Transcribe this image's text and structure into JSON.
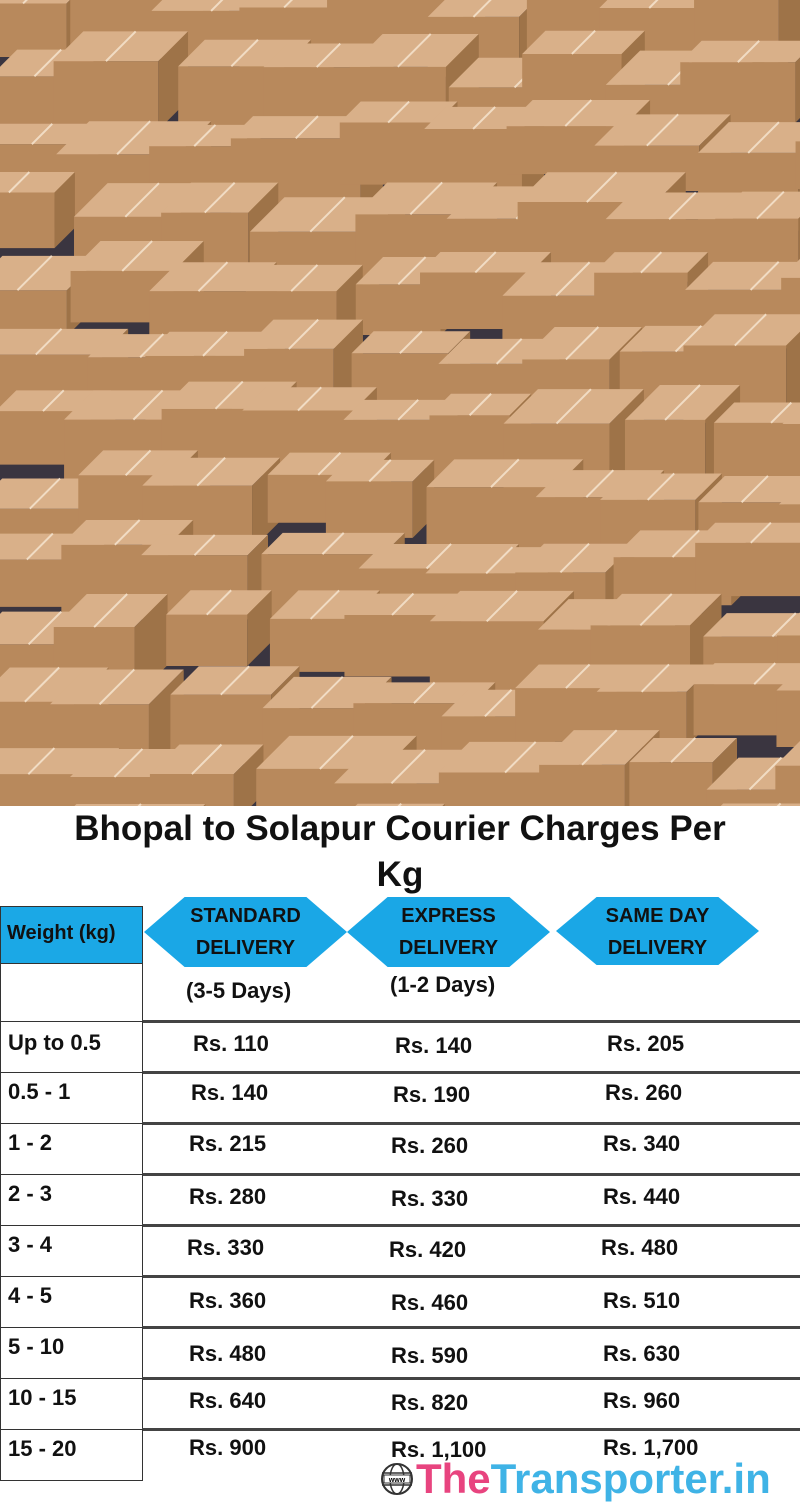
{
  "title": "Bhopal to Solapur Courier Charges Per Kg",
  "title_lines": [
    "Bhopal to Solapur Courier Charges Per",
    "Kg"
  ],
  "table": {
    "weight_header": "Weight (kg)",
    "services": [
      {
        "line1": "STANDARD",
        "line2": "DELIVERY",
        "duration": "(3-5 Days)"
      },
      {
        "line1": "EXPRESS",
        "line2": "DELIVERY",
        "duration": "(1-2 Days)"
      },
      {
        "line1": "SAME DAY",
        "line2": "DELIVERY",
        "duration": ""
      }
    ],
    "rows": [
      {
        "weight": "Up to 0.5",
        "standard": "Rs. 110",
        "express": "Rs. 140",
        "same_day": "Rs. 205"
      },
      {
        "weight": "0.5 - 1",
        "standard": "Rs. 140",
        "express": "Rs. 190",
        "same_day": "Rs. 260"
      },
      {
        "weight": "1 - 2",
        "standard": "Rs. 215",
        "express": "Rs. 260",
        "same_day": "Rs. 340"
      },
      {
        "weight": "2 - 3",
        "standard": "Rs. 280",
        "express": "Rs. 330",
        "same_day": "Rs. 440"
      },
      {
        "weight": "3 - 4",
        "standard": "Rs. 330",
        "express": "Rs. 420",
        "same_day": "Rs. 480"
      },
      {
        "weight": "4 - 5",
        "standard": "Rs. 360",
        "express": "Rs. 460",
        "same_day": "Rs. 510"
      },
      {
        "weight": "5 - 10",
        "standard": "Rs. 480",
        "express": "Rs. 590",
        "same_day": "Rs. 630"
      },
      {
        "weight": "10 - 15",
        "standard": "Rs. 640",
        "express": "Rs. 820",
        "same_day": "Rs. 960"
      },
      {
        "weight": "15 - 20",
        "standard": "Rs. 900",
        "express": "Rs. 1,100",
        "same_day": "Rs. 1,700"
      }
    ]
  },
  "logo": {
    "part1": "The",
    "part2": "Transporter.in",
    "icon_text": "www",
    "color1": "#e8447f",
    "color2": "#3fb3e6"
  },
  "colors": {
    "header_blue": "#1ba8e6",
    "box_tan": "#c99d6f"
  }
}
